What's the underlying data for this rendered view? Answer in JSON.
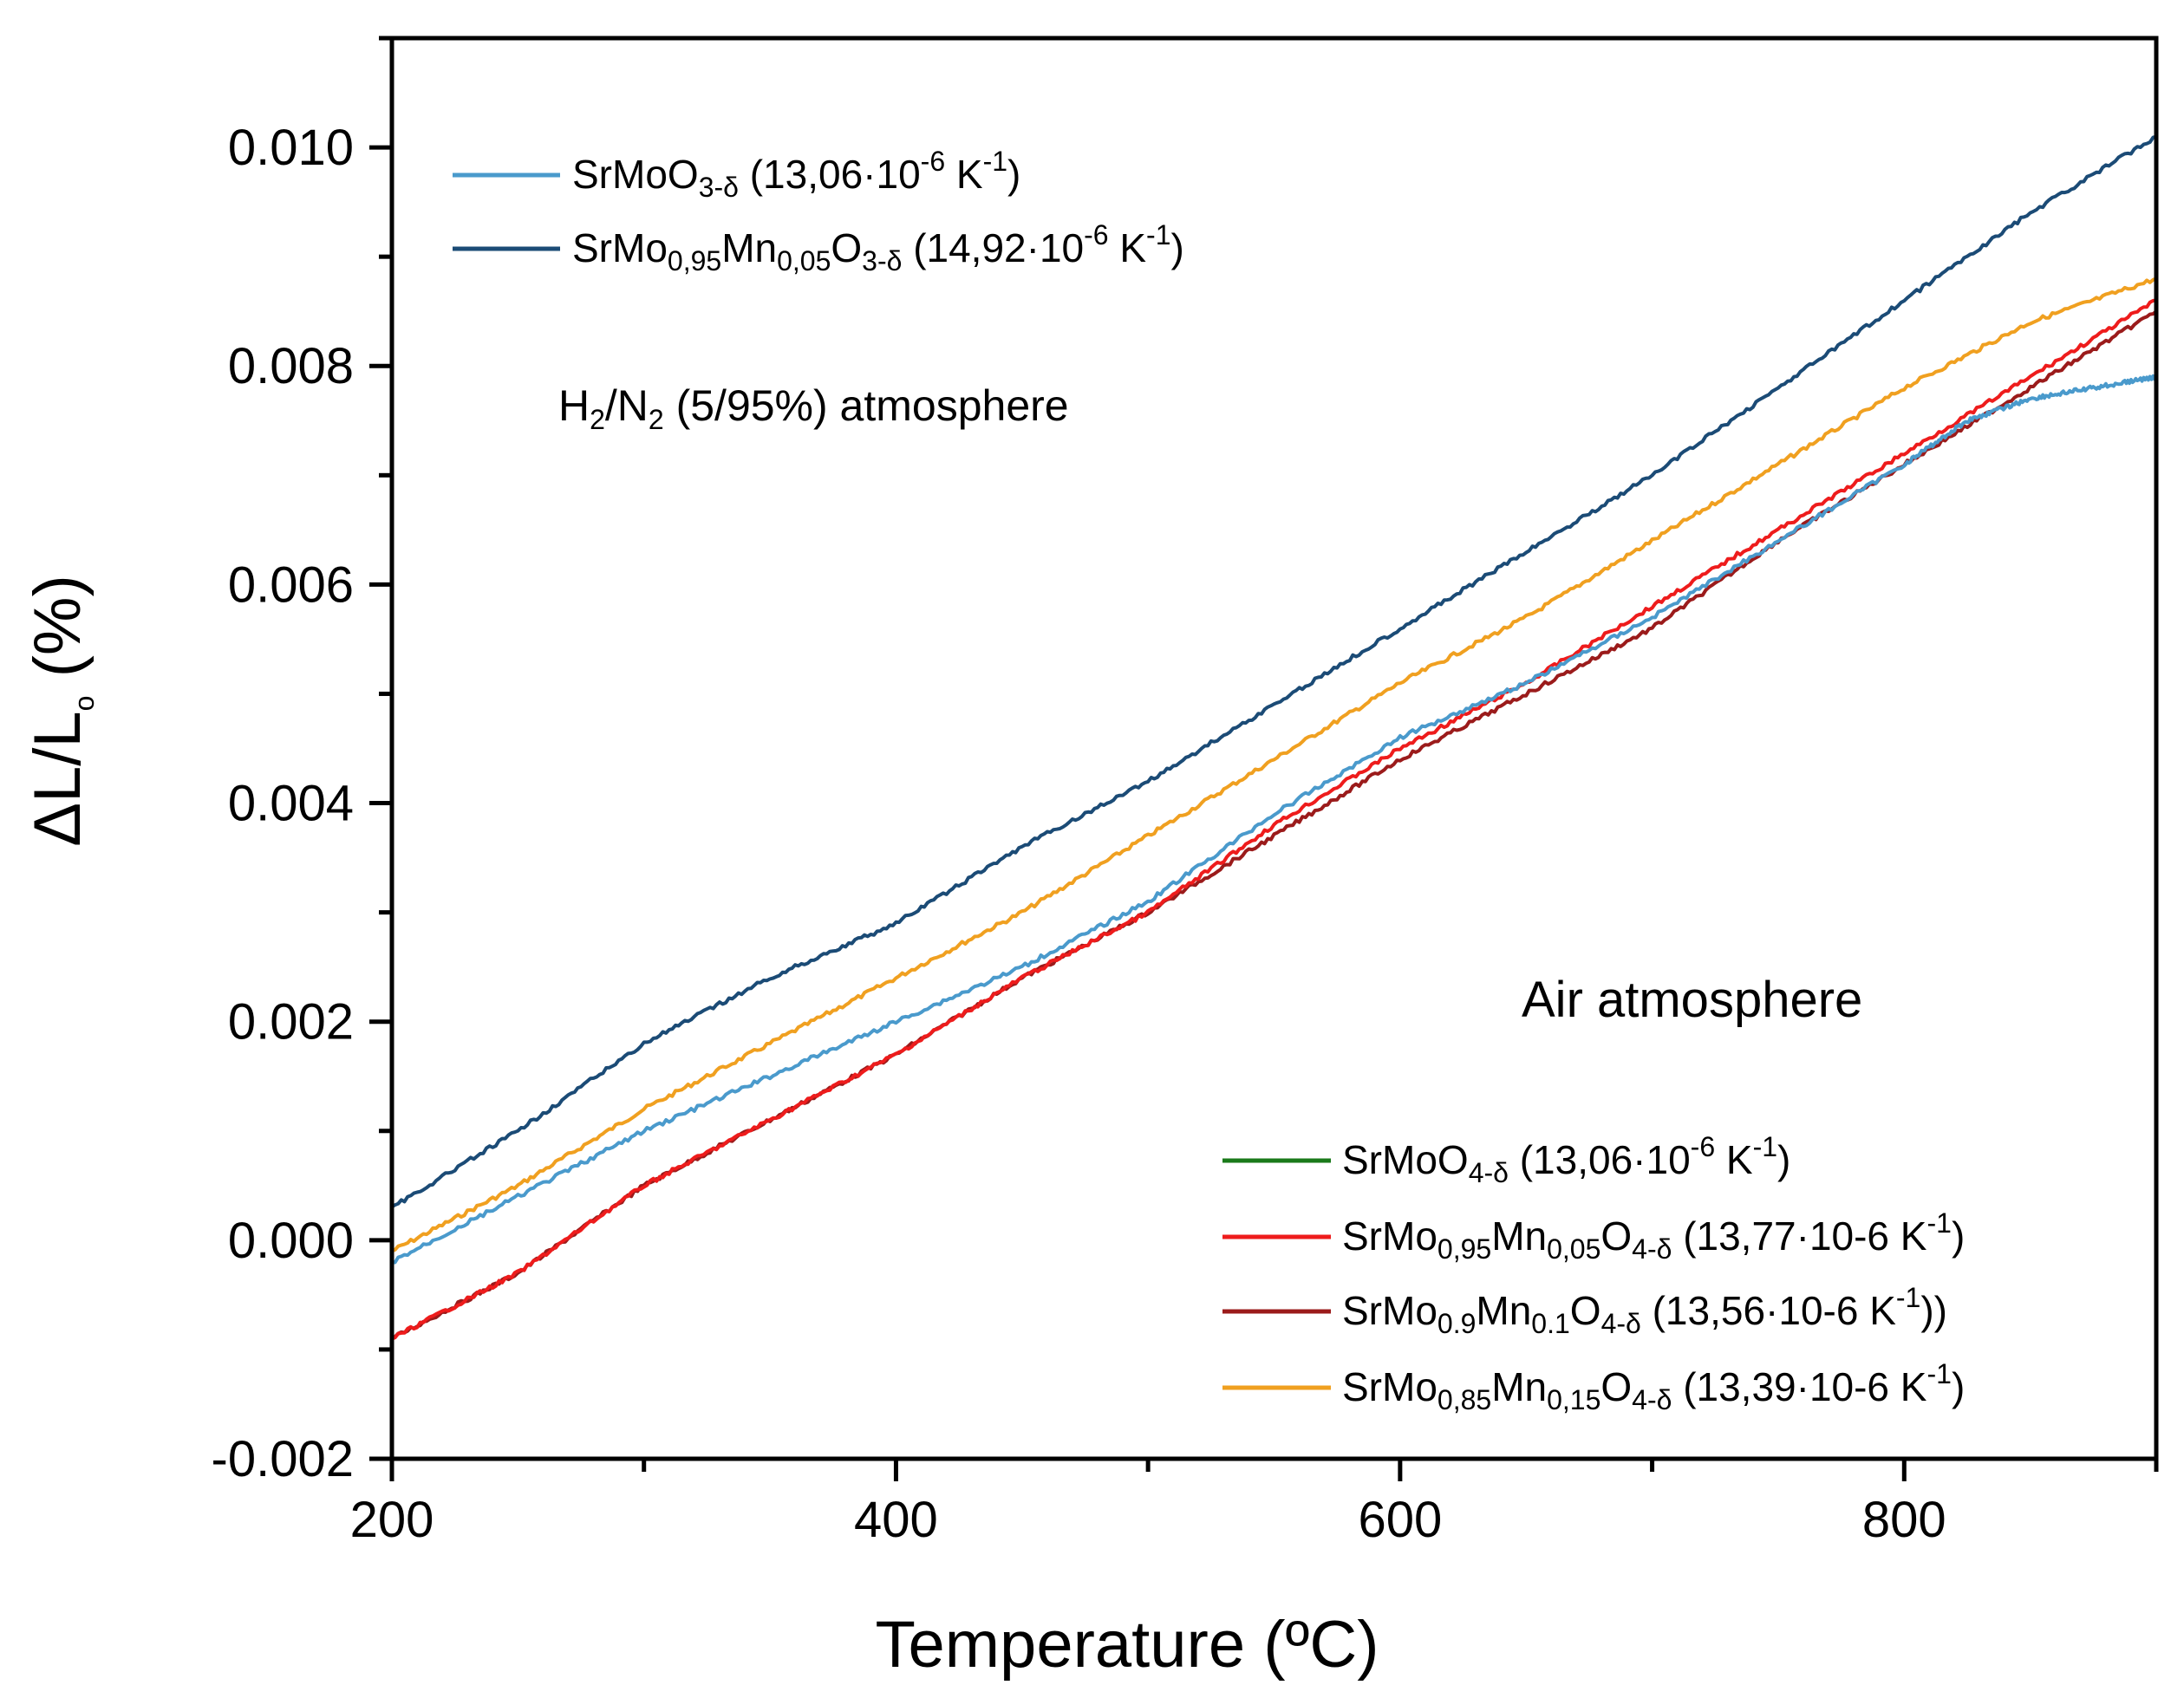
{
  "chart_data": {
    "type": "line",
    "title": "",
    "xlabel": "Temperature (ºC)",
    "ylabel": "ΔL/Lo (%)",
    "xlim": [
      200,
      900
    ],
    "ylim": [
      -0.002,
      0.011
    ],
    "x_ticks": [
      200,
      400,
      600,
      800
    ],
    "x_tick_labels": [
      "200",
      "400",
      "600",
      "800"
    ],
    "y_ticks": [
      -0.002,
      0,
      0.002,
      0.004,
      0.006,
      0.008,
      0.01
    ],
    "y_tick_labels": [
      "-0.002",
      "0.000",
      "0.002",
      "0.004",
      "0.006",
      "0.008",
      "0.010"
    ],
    "series": [
      {
        "name": "SrMoO3-δ (13,06·10-6 K-1)",
        "color": "#4A9ACC",
        "atmosphere": "H2/N2",
        "x": [
          200,
          250,
          300,
          350,
          400,
          450,
          500,
          550,
          600,
          650,
          700,
          750,
          800,
          825,
          850,
          875,
          900
        ],
        "y": [
          -0.0002,
          0.0004,
          0.001,
          0.0015,
          0.002,
          0.0025,
          0.0031,
          0.0039,
          0.0046,
          0.0051,
          0.0057,
          0.0064,
          0.0071,
          0.0075,
          0.0077,
          0.0078,
          0.0079
        ]
      },
      {
        "name": "SrMo0,95Mn0,05O3-δ (14,92·10-6 K-1)",
        "color": "#1B4B76",
        "atmosphere": "H2/N2",
        "x": [
          200,
          250,
          300,
          350,
          400,
          450,
          500,
          550,
          600,
          650,
          700,
          750,
          800,
          850,
          900
        ],
        "y": [
          0.0003,
          0.001,
          0.0018,
          0.0024,
          0.0029,
          0.0036,
          0.0042,
          0.0049,
          0.0056,
          0.0063,
          0.007,
          0.0078,
          0.0086,
          0.0094,
          0.0101
        ]
      },
      {
        "name": "SrMoO4-δ (13,06·10-6 K-1)",
        "color": "#1A7A1A",
        "atmosphere": "Air",
        "x": [],
        "y": []
      },
      {
        "name": "SrMo0,95Mn0,05O4-δ (13,77·10-6 K-1)",
        "color": "#EE1C1C",
        "atmosphere": "Air",
        "x": [
          200,
          250,
          300,
          350,
          400,
          450,
          500,
          550,
          600,
          650,
          700,
          750,
          800,
          850,
          900
        ],
        "y": [
          -0.0009,
          -0.0003,
          0.0005,
          0.0011,
          0.0017,
          0.0024,
          0.003,
          0.0038,
          0.0045,
          0.0051,
          0.0058,
          0.0065,
          0.0072,
          0.0079,
          0.0086
        ]
      },
      {
        "name": "SrMo0.9Mn0.1O4-δ (13,56·10-6 K-1))",
        "color": "#9B1B1B",
        "atmosphere": "Air",
        "x": [
          200,
          250,
          300,
          350,
          400,
          450,
          500,
          550,
          600,
          650,
          700,
          750,
          800,
          850,
          900
        ],
        "y": [
          -0.0009,
          -0.0003,
          0.0005,
          0.0011,
          0.0017,
          0.0024,
          0.003,
          0.0037,
          0.0044,
          0.005,
          0.0056,
          0.0064,
          0.0071,
          0.0078,
          0.0085
        ]
      },
      {
        "name": "SrMo0,85Mn0,15O4-δ (13,39·10-6 K-1)",
        "color": "#F0A020",
        "atmosphere": "Air",
        "x": [
          200,
          250,
          300,
          350,
          400,
          450,
          500,
          550,
          600,
          650,
          700,
          750,
          800,
          850,
          900
        ],
        "y": [
          -0.0001,
          0.0005,
          0.0012,
          0.0018,
          0.0024,
          0.003,
          0.0037,
          0.0044,
          0.0051,
          0.0057,
          0.0064,
          0.0071,
          0.0078,
          0.0084,
          0.0088
        ]
      }
    ],
    "annotations": [
      "H2/N2 (5/95%) atmosphere",
      "Air atmosphere"
    ],
    "legends": [
      {
        "placement": "top-left",
        "entries": [
          0,
          1
        ]
      },
      {
        "placement": "bottom-right",
        "entries": [
          2,
          3,
          4,
          5
        ]
      }
    ]
  }
}
